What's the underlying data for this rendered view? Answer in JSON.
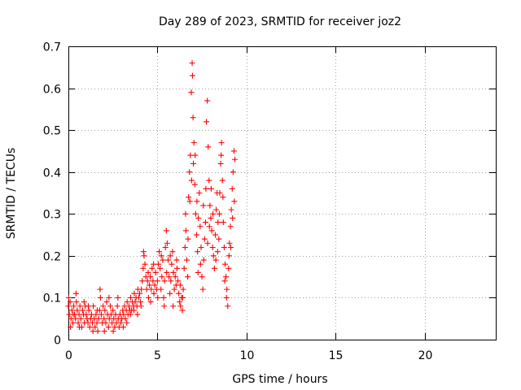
{
  "chart_data": {
    "type": "scatter",
    "title": "Day 289 of 2023, SRMTID for receiver joz2",
    "xlabel": "GPS time / hours",
    "ylabel": "SRMTID / TECUs",
    "xlim": [
      0,
      24
    ],
    "ylim": [
      0,
      0.7
    ],
    "xticks": [
      0,
      5,
      10,
      15,
      20
    ],
    "xtick_labels": [
      "0",
      "5",
      "10",
      "15",
      "20"
    ],
    "yticks": [
      0,
      0.1,
      0.2,
      0.3,
      0.4,
      0.5,
      0.6,
      0.7
    ],
    "ytick_labels": [
      "0",
      "0.1",
      "0.2",
      "0.3",
      "0.4",
      "0.5",
      "0.6",
      "0.7"
    ],
    "grid": true,
    "marker": "+",
    "color": "#ff0000",
    "series": [
      {
        "name": "SRMTID",
        "points": [
          [
            0.0,
            0.08
          ],
          [
            0.05,
            0.06
          ],
          [
            0.1,
            0.09
          ],
          [
            0.15,
            0.05
          ],
          [
            0.2,
            0.07
          ],
          [
            0.25,
            0.04
          ],
          [
            0.3,
            0.08
          ],
          [
            0.35,
            0.06
          ],
          [
            0.4,
            0.05
          ],
          [
            0.45,
            0.09
          ],
          [
            0.5,
            0.07
          ],
          [
            0.55,
            0.04
          ],
          [
            0.6,
            0.06
          ],
          [
            0.65,
            0.08
          ],
          [
            0.7,
            0.05
          ],
          [
            0.75,
            0.03
          ],
          [
            0.8,
            0.07
          ],
          [
            0.85,
            0.06
          ],
          [
            0.9,
            0.04
          ],
          [
            0.95,
            0.08
          ],
          [
            1.0,
            0.06
          ],
          [
            1.05,
            0.05
          ],
          [
            1.1,
            0.04
          ],
          [
            1.15,
            0.07
          ],
          [
            1.2,
            0.03
          ],
          [
            1.25,
            0.05
          ],
          [
            1.3,
            0.06
          ],
          [
            1.35,
            0.04
          ],
          [
            1.4,
            0.08
          ],
          [
            1.45,
            0.05
          ],
          [
            1.5,
            0.03
          ],
          [
            1.55,
            0.06
          ],
          [
            1.6,
            0.04
          ],
          [
            1.65,
            0.02
          ],
          [
            1.7,
            0.05
          ],
          [
            1.75,
            0.07
          ],
          [
            1.8,
            0.1
          ],
          [
            1.85,
            0.06
          ],
          [
            1.9,
            0.04
          ],
          [
            1.95,
            0.08
          ],
          [
            2.0,
            0.05
          ],
          [
            2.05,
            0.07
          ],
          [
            2.1,
            0.04
          ],
          [
            2.15,
            0.09
          ],
          [
            2.2,
            0.06
          ],
          [
            2.25,
            0.03
          ],
          [
            2.3,
            0.05
          ],
          [
            2.35,
            0.08
          ],
          [
            2.4,
            0.06
          ],
          [
            2.45,
            0.04
          ],
          [
            2.5,
            0.07
          ],
          [
            2.55,
            0.05
          ],
          [
            2.6,
            0.03
          ],
          [
            2.65,
            0.06
          ],
          [
            2.7,
            0.04
          ],
          [
            2.75,
            0.08
          ],
          [
            2.8,
            0.05
          ],
          [
            2.85,
            0.03
          ],
          [
            2.9,
            0.06
          ],
          [
            2.95,
            0.04
          ],
          [
            3.0,
            0.05
          ],
          [
            3.05,
            0.07
          ],
          [
            3.1,
            0.06
          ],
          [
            3.15,
            0.08
          ],
          [
            3.2,
            0.05
          ],
          [
            3.25,
            0.07
          ],
          [
            3.3,
            0.09
          ],
          [
            3.35,
            0.06
          ],
          [
            3.4,
            0.08
          ],
          [
            3.45,
            0.07
          ],
          [
            3.5,
            0.1
          ],
          [
            3.55,
            0.07
          ],
          [
            3.6,
            0.09
          ],
          [
            3.65,
            0.08
          ],
          [
            3.7,
            0.11
          ],
          [
            3.75,
            0.09
          ],
          [
            3.8,
            0.1
          ],
          [
            3.85,
            0.08
          ],
          [
            3.9,
            0.12
          ],
          [
            3.95,
            0.1
          ],
          [
            4.0,
            0.11
          ],
          [
            4.05,
            0.09
          ],
          [
            4.1,
            0.12
          ],
          [
            4.15,
            0.14
          ],
          [
            4.2,
            0.17
          ],
          [
            4.25,
            0.2
          ],
          [
            4.3,
            0.18
          ],
          [
            4.35,
            0.15
          ],
          [
            4.4,
            0.12
          ],
          [
            4.45,
            0.14
          ],
          [
            4.5,
            0.1
          ],
          [
            4.55,
            0.13
          ],
          [
            4.6,
            0.15
          ],
          [
            4.65,
            0.12
          ],
          [
            4.7,
            0.17
          ],
          [
            4.75,
            0.14
          ],
          [
            4.8,
            0.11
          ],
          [
            4.85,
            0.13
          ],
          [
            4.9,
            0.16
          ],
          [
            4.95,
            0.12
          ],
          [
            5.0,
            0.14
          ],
          [
            5.05,
            0.18
          ],
          [
            5.1,
            0.21
          ],
          [
            5.15,
            0.17
          ],
          [
            5.2,
            0.12
          ],
          [
            5.25,
            0.15
          ],
          [
            5.3,
            0.19
          ],
          [
            5.35,
            0.1
          ],
          [
            5.4,
            0.14
          ],
          [
            5.45,
            0.22
          ],
          [
            5.5,
            0.26
          ],
          [
            5.55,
            0.23
          ],
          [
            5.6,
            0.19
          ],
          [
            5.65,
            0.15
          ],
          [
            5.7,
            0.11
          ],
          [
            5.75,
            0.14
          ],
          [
            5.8,
            0.18
          ],
          [
            5.85,
            0.21
          ],
          [
            5.9,
            0.16
          ],
          [
            5.95,
            0.12
          ],
          [
            6.0,
            0.15
          ],
          [
            6.05,
            0.13
          ],
          [
            6.1,
            0.17
          ],
          [
            6.15,
            0.14
          ],
          [
            6.2,
            0.11
          ],
          [
            6.25,
            0.09
          ],
          [
            6.3,
            0.08
          ],
          [
            6.35,
            0.1
          ],
          [
            6.4,
            0.07
          ],
          [
            6.45,
            0.12
          ],
          [
            6.5,
            0.17
          ],
          [
            6.55,
            0.22
          ],
          [
            6.6,
            0.26
          ],
          [
            6.65,
            0.19
          ],
          [
            6.7,
            0.15
          ],
          [
            6.75,
            0.34
          ],
          [
            6.8,
            0.4
          ],
          [
            6.85,
            0.44
          ],
          [
            6.9,
            0.59
          ],
          [
            6.95,
            0.66
          ],
          [
            7.0,
            0.53
          ],
          [
            7.05,
            0.47
          ],
          [
            7.1,
            0.37
          ],
          [
            7.15,
            0.3
          ],
          [
            7.2,
            0.25
          ],
          [
            7.25,
            0.21
          ],
          [
            7.3,
            0.29
          ],
          [
            7.35,
            0.35
          ],
          [
            7.4,
            0.27
          ],
          [
            7.45,
            0.22
          ],
          [
            7.5,
            0.15
          ],
          [
            7.55,
            0.12
          ],
          [
            7.6,
            0.19
          ],
          [
            7.65,
            0.24
          ],
          [
            7.7,
            0.28
          ],
          [
            7.75,
            0.52
          ],
          [
            7.8,
            0.57
          ],
          [
            7.85,
            0.46
          ],
          [
            7.9,
            0.38
          ],
          [
            7.95,
            0.32
          ],
          [
            8.0,
            0.29
          ],
          [
            8.05,
            0.26
          ],
          [
            8.1,
            0.22
          ],
          [
            8.15,
            0.2
          ],
          [
            8.2,
            0.17
          ],
          [
            8.25,
            0.25
          ],
          [
            8.3,
            0.31
          ],
          [
            8.35,
            0.35
          ],
          [
            8.4,
            0.28
          ],
          [
            8.45,
            0.24
          ],
          [
            8.5,
            0.35
          ],
          [
            8.55,
            0.42
          ],
          [
            8.6,
            0.47
          ],
          [
            8.65,
            0.38
          ],
          [
            8.7,
            0.28
          ],
          [
            8.75,
            0.22
          ],
          [
            8.8,
            0.18
          ],
          [
            8.85,
            0.15
          ],
          [
            8.9,
            0.12
          ],
          [
            8.95,
            0.08
          ],
          [
            9.0,
            0.17
          ],
          [
            9.05,
            0.23
          ],
          [
            9.1,
            0.27
          ],
          [
            9.15,
            0.31
          ],
          [
            9.2,
            0.36
          ],
          [
            9.25,
            0.4
          ],
          [
            9.3,
            0.45
          ],
          [
            9.35,
            0.43
          ],
          [
            0.02,
            0.1
          ],
          [
            0.12,
            0.03
          ],
          [
            0.27,
            0.06
          ],
          [
            0.43,
            0.11
          ],
          [
            0.62,
            0.03
          ],
          [
            0.88,
            0.09
          ],
          [
            1.12,
            0.08
          ],
          [
            1.38,
            0.02
          ],
          [
            1.62,
            0.07
          ],
          [
            1.78,
            0.12
          ],
          [
            2.02,
            0.02
          ],
          [
            2.28,
            0.1
          ],
          [
            2.52,
            0.02
          ],
          [
            2.78,
            0.1
          ],
          [
            3.08,
            0.03
          ],
          [
            3.28,
            0.04
          ],
          [
            3.48,
            0.06
          ],
          [
            3.68,
            0.07
          ],
          [
            3.88,
            0.06
          ],
          [
            4.08,
            0.08
          ],
          [
            4.22,
            0.21
          ],
          [
            4.48,
            0.16
          ],
          [
            4.62,
            0.09
          ],
          [
            4.78,
            0.18
          ],
          [
            5.02,
            0.1
          ],
          [
            5.22,
            0.2
          ],
          [
            5.38,
            0.08
          ],
          [
            5.52,
            0.16
          ],
          [
            5.72,
            0.2
          ],
          [
            5.88,
            0.08
          ],
          [
            6.08,
            0.19
          ],
          [
            6.28,
            0.13
          ],
          [
            6.42,
            0.1
          ],
          [
            6.58,
            0.3
          ],
          [
            6.72,
            0.24
          ],
          [
            6.82,
            0.33
          ],
          [
            6.92,
            0.38
          ],
          [
            6.97,
            0.63
          ],
          [
            7.02,
            0.42
          ],
          [
            7.12,
            0.44
          ],
          [
            7.22,
            0.33
          ],
          [
            7.28,
            0.16
          ],
          [
            7.42,
            0.18
          ],
          [
            7.58,
            0.32
          ],
          [
            7.72,
            0.36
          ],
          [
            7.82,
            0.23
          ],
          [
            7.92,
            0.27
          ],
          [
            8.02,
            0.36
          ],
          [
            8.12,
            0.3
          ],
          [
            8.28,
            0.19
          ],
          [
            8.38,
            0.21
          ],
          [
            8.48,
            0.3
          ],
          [
            8.58,
            0.44
          ],
          [
            8.68,
            0.34
          ],
          [
            8.78,
            0.14
          ],
          [
            8.88,
            0.1
          ],
          [
            9.02,
            0.2
          ],
          [
            9.12,
            0.22
          ],
          [
            9.22,
            0.29
          ],
          [
            9.32,
            0.33
          ]
        ]
      }
    ]
  }
}
